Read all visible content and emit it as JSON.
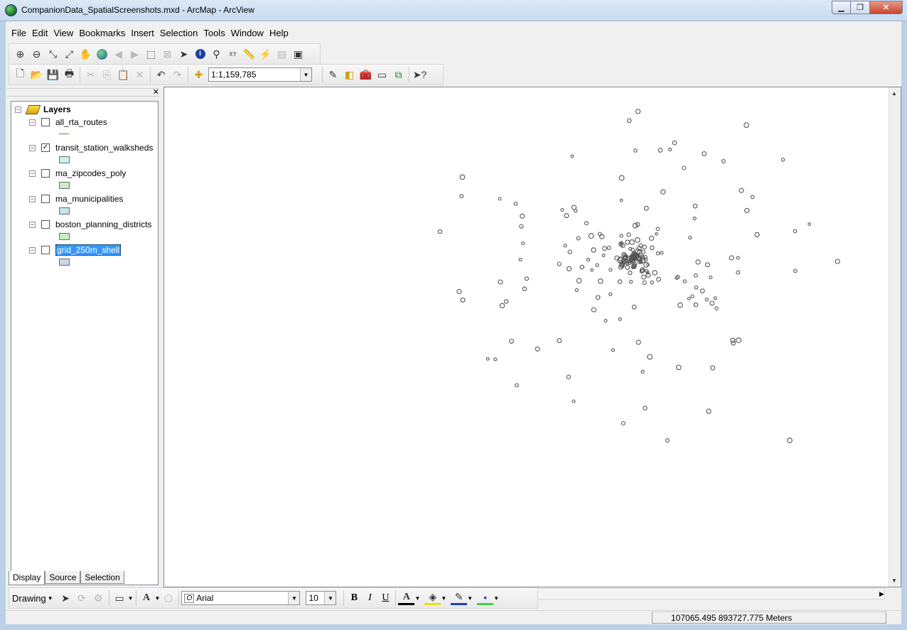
{
  "window": {
    "title": "CompanionData_SpatialScreenshots.mxd - ArcMap - ArcView",
    "app_icon": "arcmap-globe-icon"
  },
  "menu": [
    "File",
    "Edit",
    "View",
    "Bookmarks",
    "Insert",
    "Selection",
    "Tools",
    "Window",
    "Help"
  ],
  "tools_toolbar": [
    "zoom-in-icon",
    "zoom-out-icon",
    "fixed-zoom-in-icon",
    "fixed-zoom-out-icon",
    "pan-icon",
    "full-extent-icon",
    "back-extent-icon",
    "forward-extent-icon",
    "select-features-icon",
    "clear-selection-icon",
    "select-elements-icon",
    "identify-icon",
    "find-icon",
    "go-to-xy-icon",
    "measure-icon",
    "hyperlink-icon",
    "html-popup-icon",
    "create-viewer-icon"
  ],
  "standard_toolbar": {
    "scale_value": "1:1,159,785",
    "icons": [
      "new-icon",
      "open-icon",
      "save-icon",
      "print-icon",
      "cut-icon",
      "copy-icon",
      "paste-icon",
      "delete-icon",
      "undo-icon",
      "redo-icon",
      "add-data-icon",
      "editor-toolbar-icon",
      "table-of-contents-icon",
      "arctoolbox-icon",
      "python-window-icon",
      "modelbuilder-icon",
      "whats-this-icon"
    ]
  },
  "toc": {
    "root": "Layers",
    "layers": [
      {
        "name": "all_rta_routes",
        "checked": false,
        "symbol": "line",
        "color": "#4c9a2a",
        "selected": false
      },
      {
        "name": "transit_station_walksheds",
        "checked": true,
        "symbol": "fill",
        "color": "#c8f2f2",
        "selected": false
      },
      {
        "name": "ma_zipcodes_poly",
        "checked": false,
        "symbol": "fill",
        "color": "#c9f0c4",
        "selected": false
      },
      {
        "name": "ma_municipalities",
        "checked": false,
        "symbol": "fill",
        "color": "#c7e4f0",
        "selected": false
      },
      {
        "name": "boston_planning_districts",
        "checked": false,
        "symbol": "fill",
        "color": "#c9f0c4",
        "selected": false
      },
      {
        "name": "grid_250m_shell",
        "checked": false,
        "symbol": "fill",
        "color": "#c7d7ee",
        "selected": true
      }
    ],
    "tabs": [
      "Display",
      "Source",
      "Selection"
    ],
    "active_tab": "Display"
  },
  "drawing_toolbar": {
    "label": "Drawing",
    "font": "Arial",
    "font_size": "10",
    "bold": "B",
    "italic": "I",
    "underline": "U",
    "text_color": "#000000",
    "fill_color": "#f0e000",
    "line_color": "#1f3fd0",
    "marker_color": "#40d040"
  },
  "status": {
    "coords": "107065.495  893727.775 Meters"
  },
  "map": {
    "feature_color": "#555555"
  }
}
